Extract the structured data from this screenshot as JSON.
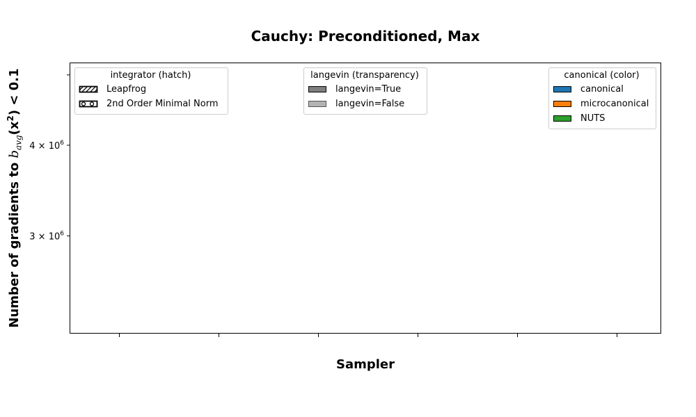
{
  "chart_data": {
    "type": "bar",
    "title": "Cauchy: Preconditioned, Max",
    "xlabel": "Sampler",
    "ylabel_parts": {
      "prefix": "Number of gradients to ",
      "b": "b",
      "avg": "avg",
      "chi": "(x",
      "sq": "2",
      "suffix": ") < 0.1"
    },
    "yscale": "log",
    "ylim": [
      2200000,
      5200000
    ],
    "yticks": [
      {
        "value": 3000000,
        "mantissa": "3",
        "base": "10",
        "exp": "6"
      },
      {
        "value": 4000000,
        "mantissa": "4",
        "base": "10",
        "exp": "6"
      },
      {
        "value": 5000000,
        "mantissa": "",
        "base": "",
        "exp": ""
      }
    ],
    "categories": [
      "",
      "",
      "",
      "",
      "",
      ""
    ],
    "series": [],
    "legends": [
      {
        "title": "integrator (hatch)",
        "placement": "top-left",
        "entries": [
          {
            "label": "Leapfrog",
            "hatch": "diagonal"
          },
          {
            "label": "2nd Order Minimal Norm",
            "hatch": "circles"
          }
        ]
      },
      {
        "title": "langevin (transparency)",
        "placement": "top-center",
        "entries": [
          {
            "label": "langevin=True",
            "color": "#808080"
          },
          {
            "label": "langevin=False",
            "color": "#b3b3b3"
          }
        ]
      },
      {
        "title": "canonical (color)",
        "placement": "top-right",
        "entries": [
          {
            "label": "canonical",
            "color": "#1f77b4"
          },
          {
            "label": "microcanonical",
            "color": "#ff7f0e"
          },
          {
            "label": "NUTS",
            "color": "#2ca02c"
          }
        ]
      }
    ]
  }
}
